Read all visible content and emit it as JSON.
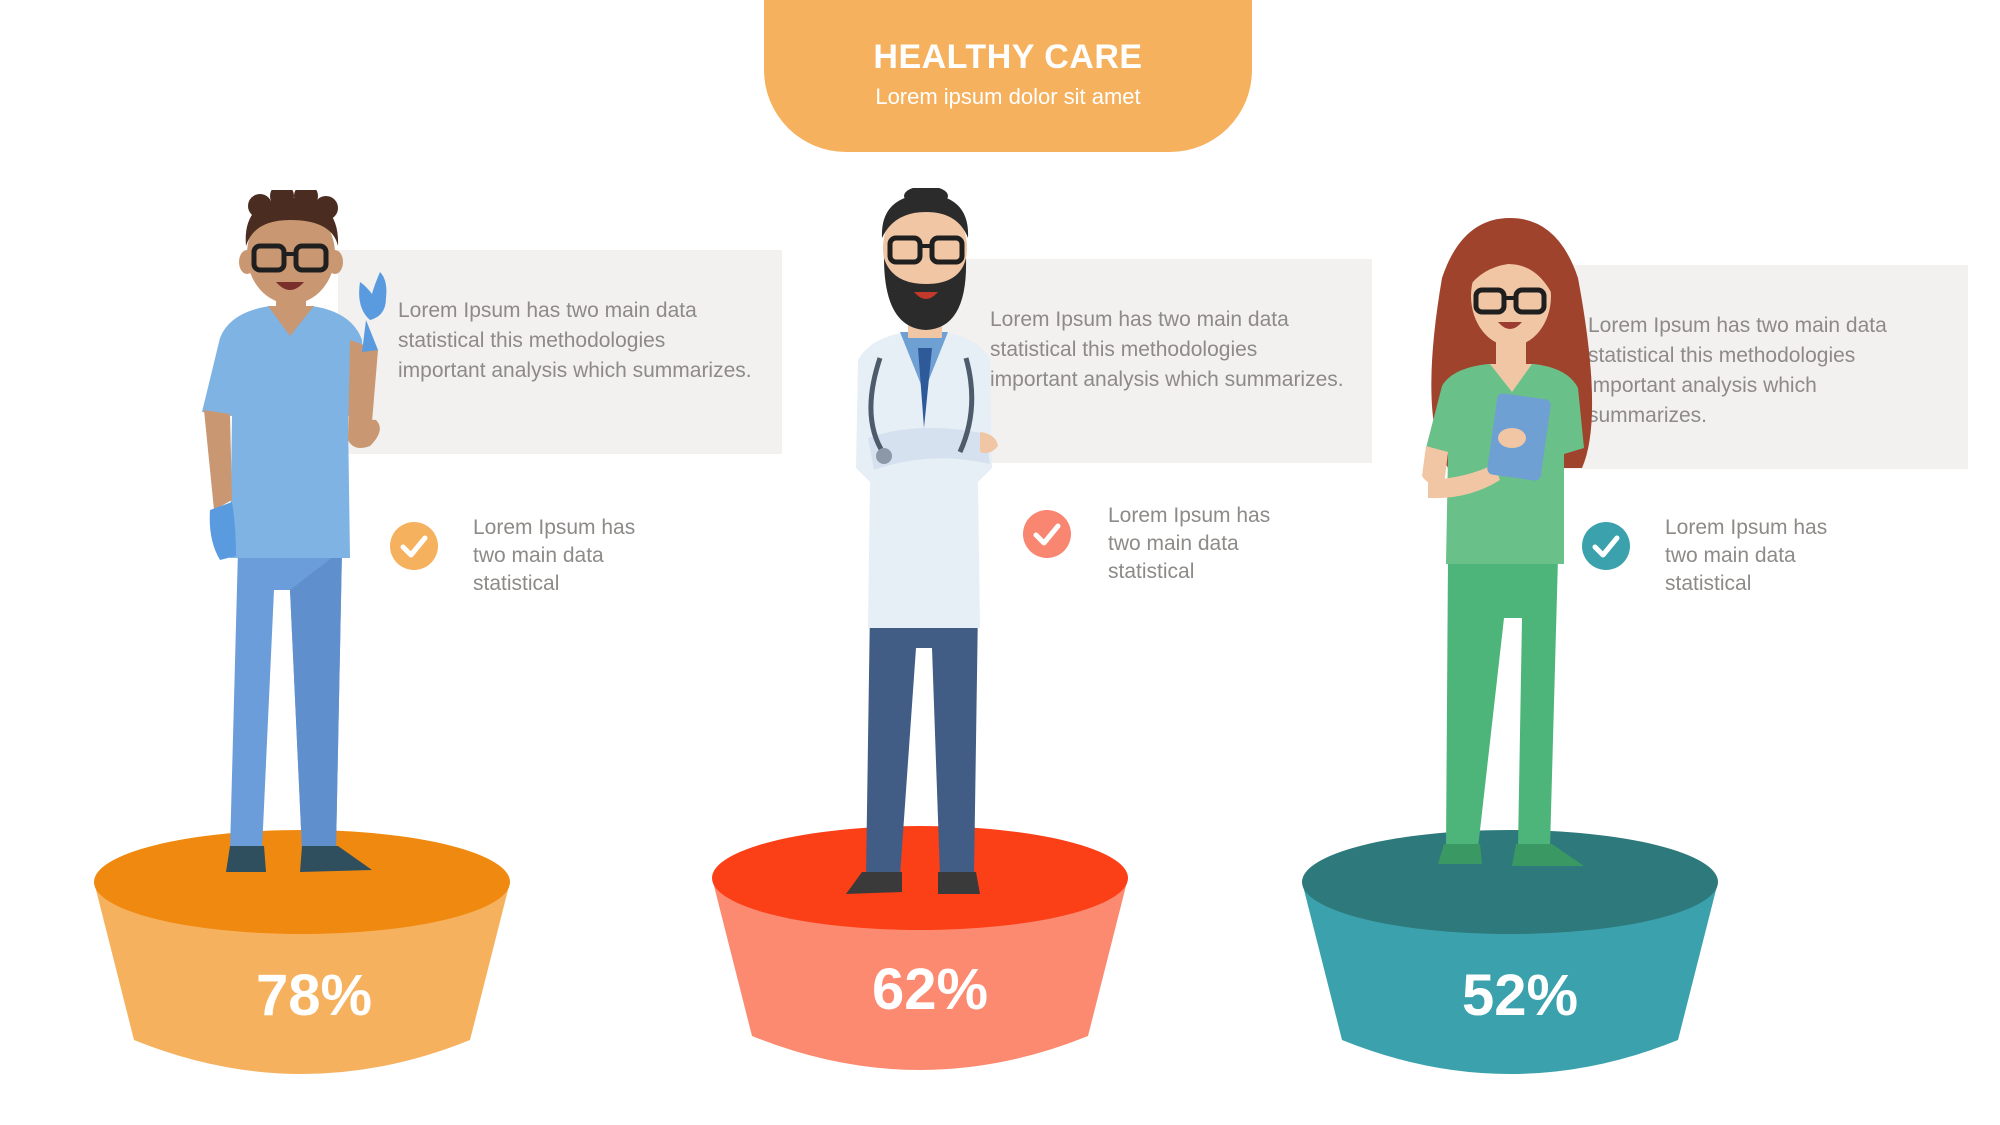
{
  "header": {
    "title": "HEALTHY CARE",
    "subtitle": "Lorem ipsum dolor sit amet"
  },
  "cards": [
    {
      "description": "Lorem Ipsum has two main data statistical this methodologies important analysis which summarizes.",
      "note": "Lorem Ipsum has two main data statistical",
      "percent": "78%",
      "check_color": "#f6b15e",
      "pedestal_top": "#f0890f",
      "pedestal_body": "#f6b15e",
      "figure_icon": "nurse-male-icon"
    },
    {
      "description": "Lorem Ipsum has two main data statistical this methodologies important analysis which summarizes.",
      "note": "Lorem Ipsum has two main data statistical",
      "percent": "62%",
      "check_color": "#f88670",
      "pedestal_top": "#fb3f17",
      "pedestal_body": "#fb8a70",
      "figure_icon": "doctor-icon"
    },
    {
      "description": "Lorem Ipsum has two main data statistical this methodologies important analysis which summarizes.",
      "note": "Lorem Ipsum has two main data statistical",
      "percent": "52%",
      "check_color": "#3ba2ad",
      "pedestal_top": "#2e797b",
      "pedestal_body": "#3ba2ad",
      "figure_icon": "nurse-female-icon"
    }
  ]
}
